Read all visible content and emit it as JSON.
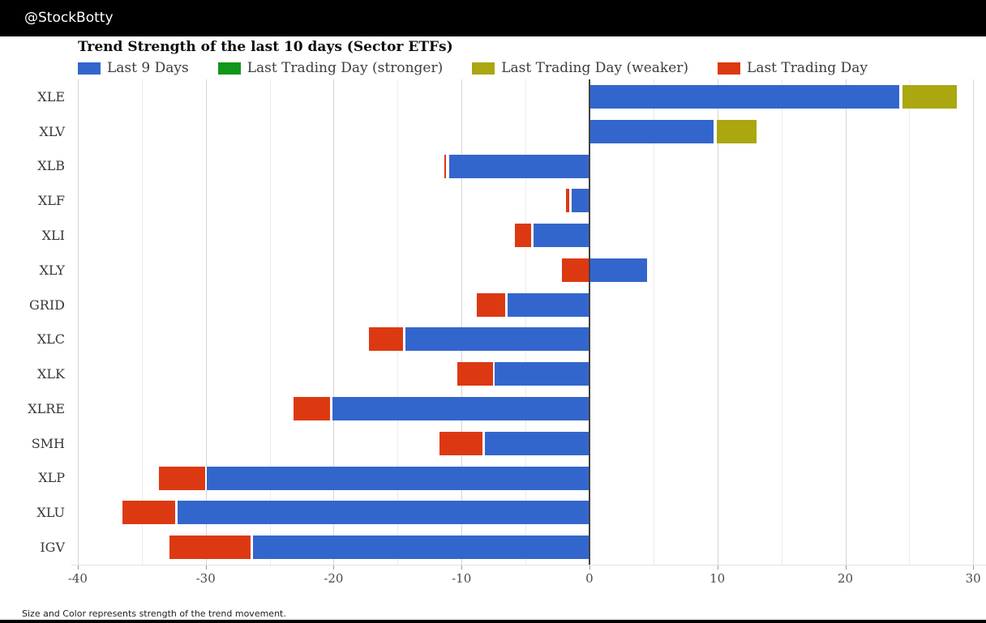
{
  "header": {
    "handle": "@StockBotty",
    "bg_color": "#000000"
  },
  "footnote": {
    "text": "Size and Color represents strength of the trend movement."
  },
  "chart_data": {
    "type": "bar",
    "orientation": "horizontal",
    "title": "Trend Strength of the last 10 days (Sector ETFs)",
    "categories": [
      "XLE",
      "XLV",
      "XLB",
      "XLF",
      "XLI",
      "XLY",
      "GRID",
      "XLC",
      "XLK",
      "XLRE",
      "SMH",
      "XLP",
      "XLU",
      "IGV"
    ],
    "xlim": [
      -40.5,
      31
    ],
    "xticks": [
      -40,
      -30,
      -20,
      -10,
      0,
      10,
      20,
      30
    ],
    "grid_step": 5,
    "grid": true,
    "legend_position": "top",
    "legend": [
      {
        "key": "last9",
        "label": "Last 9 Days",
        "color": "#3366cc"
      },
      {
        "key": "stronger",
        "label": "Last Trading Day (stronger)",
        "color": "#109618"
      },
      {
        "key": "weaker",
        "label": "Last Trading Day (weaker)",
        "color": "#aaa711"
      },
      {
        "key": "last_day",
        "label": "Last Trading Day",
        "color": "#dc3912"
      }
    ],
    "bars": [
      {
        "category": "XLE",
        "segments": [
          {
            "key": "last9",
            "from": 0,
            "to": 24.3
          },
          {
            "key": "weaker",
            "from": 24.4,
            "to": 28.8
          }
        ]
      },
      {
        "category": "XLV",
        "segments": [
          {
            "key": "last9",
            "from": 0,
            "to": 9.8
          },
          {
            "key": "weaker",
            "from": 9.9,
            "to": 13.1
          }
        ]
      },
      {
        "category": "XLB",
        "segments": [
          {
            "key": "last_day",
            "from": -11.4,
            "to": -11.15
          },
          {
            "key": "last9",
            "from": -11.05,
            "to": 0
          }
        ]
      },
      {
        "category": "XLF",
        "segments": [
          {
            "key": "last_day",
            "from": -1.9,
            "to": -1.5
          },
          {
            "key": "last9",
            "from": -1.45,
            "to": 0
          }
        ]
      },
      {
        "category": "XLI",
        "segments": [
          {
            "key": "last_day",
            "from": -5.9,
            "to": -4.5
          },
          {
            "key": "last9",
            "from": -4.45,
            "to": 0
          }
        ]
      },
      {
        "category": "XLY",
        "segments": [
          {
            "key": "last_day",
            "from": -2.2,
            "to": 0
          },
          {
            "key": "last9",
            "from": 0,
            "to": 4.6
          }
        ]
      },
      {
        "category": "GRID",
        "segments": [
          {
            "key": "last_day",
            "from": -8.9,
            "to": -6.5
          },
          {
            "key": "last9",
            "from": -6.45,
            "to": 0
          }
        ]
      },
      {
        "category": "XLC",
        "segments": [
          {
            "key": "last_day",
            "from": -17.3,
            "to": -14.5
          },
          {
            "key": "last9",
            "from": -14.45,
            "to": 0
          }
        ]
      },
      {
        "category": "XLK",
        "segments": [
          {
            "key": "last_day",
            "from": -10.4,
            "to": -7.5
          },
          {
            "key": "last9",
            "from": -7.45,
            "to": 0
          }
        ]
      },
      {
        "category": "XLRE",
        "segments": [
          {
            "key": "last_day",
            "from": -23.2,
            "to": -20.2
          },
          {
            "key": "last9",
            "from": -20.15,
            "to": 0
          }
        ]
      },
      {
        "category": "SMH",
        "segments": [
          {
            "key": "last_day",
            "from": -11.8,
            "to": -8.3
          },
          {
            "key": "last9",
            "from": -8.25,
            "to": 0
          }
        ]
      },
      {
        "category": "XLP",
        "segments": [
          {
            "key": "last_day",
            "from": -33.7,
            "to": -30.0
          },
          {
            "key": "last9",
            "from": -29.95,
            "to": 0
          }
        ]
      },
      {
        "category": "XLU",
        "segments": [
          {
            "key": "last_day",
            "from": -36.6,
            "to": -32.3
          },
          {
            "key": "last9",
            "from": -32.25,
            "to": 0
          }
        ]
      },
      {
        "category": "IGV",
        "segments": [
          {
            "key": "last_day",
            "from": -32.9,
            "to": -26.4
          },
          {
            "key": "last9",
            "from": -26.35,
            "to": 0
          }
        ]
      }
    ]
  }
}
